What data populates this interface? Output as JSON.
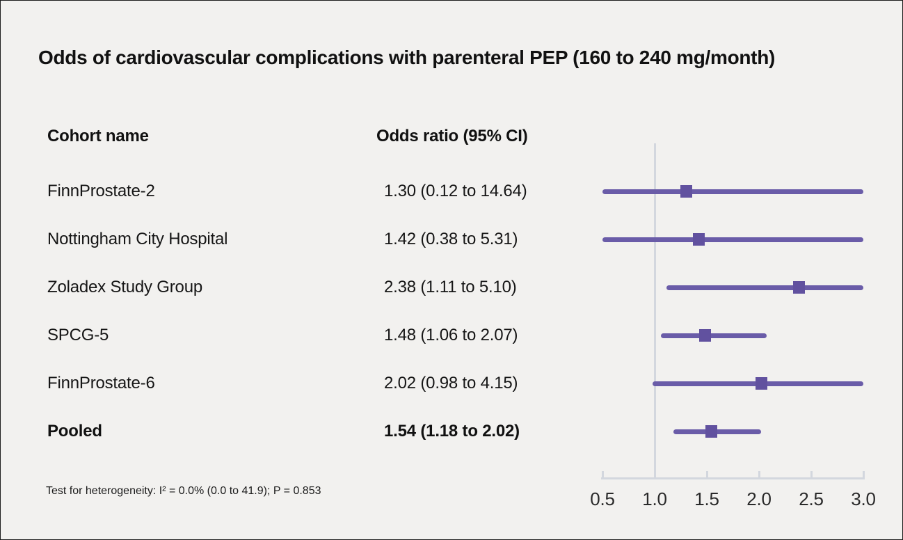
{
  "chart_data": {
    "type": "forest",
    "title": "Odds of cardiovascular complications with parenteral PEP (160 to 240 mg/month)",
    "columns": {
      "cohort": "Cohort name",
      "or": "Odds ratio (95% CI)"
    },
    "rows": [
      {
        "label": "FinnProstate-2",
        "or_text": "1.30 (0.12 to 14.64)",
        "or": 1.3,
        "lo": 0.12,
        "hi": 14.64,
        "bold": false
      },
      {
        "label": "Nottingham City Hospital",
        "or_text": "1.42 (0.38 to 5.31)",
        "or": 1.42,
        "lo": 0.38,
        "hi": 5.31,
        "bold": false
      },
      {
        "label": "Zoladex Study Group",
        "or_text": "2.38 (1.11 to 5.10)",
        "or": 2.38,
        "lo": 1.11,
        "hi": 5.1,
        "bold": false
      },
      {
        "label": "SPCG-5",
        "or_text": "1.48 (1.06 to 2.07)",
        "or": 1.48,
        "lo": 1.06,
        "hi": 2.07,
        "bold": false
      },
      {
        "label": "FinnProstate-6",
        "or_text": "2.02 (0.98 to 4.15)",
        "or": 2.02,
        "lo": 0.98,
        "hi": 4.15,
        "bold": false
      },
      {
        "label": "Pooled",
        "or_text": "1.54 (1.18 to 2.02)",
        "or": 1.54,
        "lo": 1.18,
        "hi": 2.02,
        "bold": true
      }
    ],
    "x_axis": {
      "min": 0.5,
      "max": 3.0,
      "ticks": [
        0.5,
        1.0,
        1.5,
        2.0,
        2.5,
        3.0
      ],
      "tick_labels": [
        "0.5",
        "1.0",
        "1.5",
        "2.0",
        "2.5",
        "3.0"
      ],
      "reference_line": 1.0
    },
    "footnote": "Test for heterogeneity: I² = 0.0% (0.0 to 41.9); P = 0.853",
    "colors": {
      "ci_line": "#6a5ca8",
      "marker": "#61519f",
      "axis": "#d3d7de",
      "background": "#f2f1ef",
      "text": "#141414"
    }
  }
}
